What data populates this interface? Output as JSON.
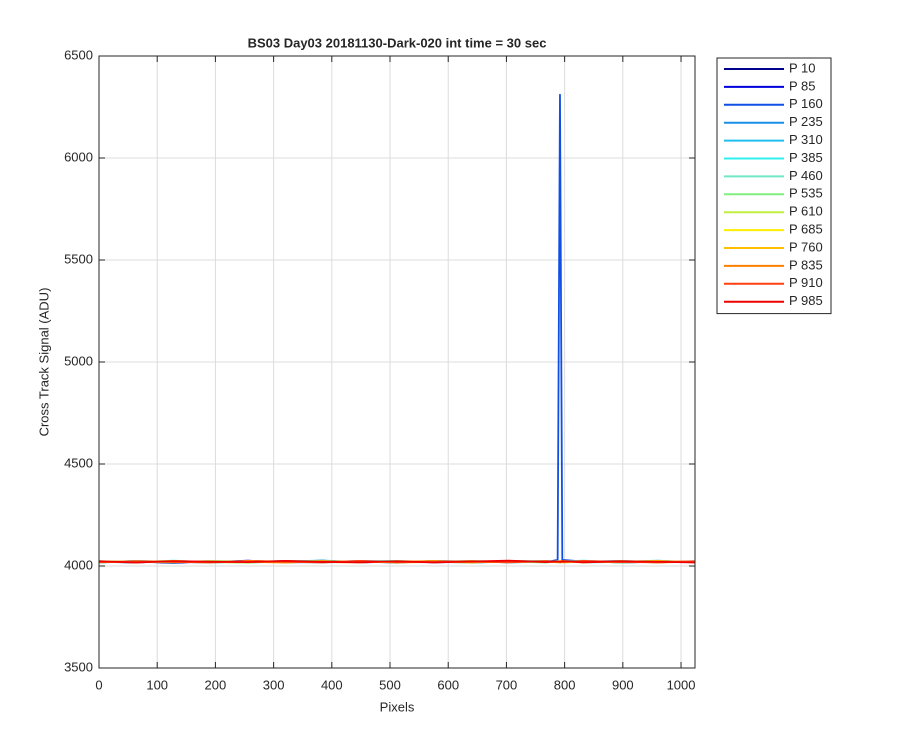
{
  "chart_data": {
    "type": "line",
    "title": "BS03 Day03 20181130-Dark-020 int time = 30 sec",
    "xlabel": "Pixels",
    "ylabel": "Cross Track Signal (ADU)",
    "x": [
      0,
      64,
      128,
      192,
      256,
      320,
      384,
      448,
      512,
      576,
      640,
      704,
      768,
      788,
      792,
      796,
      832,
      896,
      960,
      1024
    ],
    "xlim": [
      0,
      1024
    ],
    "ylim": [
      3500,
      6500
    ],
    "xticks": [
      0,
      100,
      200,
      300,
      400,
      500,
      600,
      700,
      800,
      900,
      1000
    ],
    "yticks": [
      3500,
      4000,
      4500,
      5000,
      5500,
      6000,
      6500
    ],
    "grid": true,
    "legend": "outside-right",
    "series": [
      {
        "name": "P 10",
        "color": "#00008f",
        "values": [
          4018,
          4022,
          4015,
          4024,
          4019,
          4021,
          4026,
          4017,
          4023,
          4020,
          4018,
          4025,
          4021,
          4019,
          4022,
          4020,
          4024,
          4017,
          4021,
          4019
        ]
      },
      {
        "name": "P 85",
        "color": "#0000df",
        "values": [
          4021,
          4017,
          4024,
          4019,
          4026,
          4018,
          4020,
          4023,
          4016,
          4025,
          4021,
          4019,
          4024,
          4022,
          4018,
          4021,
          4019,
          4023,
          4018,
          4022
        ]
      },
      {
        "name": "P 160",
        "color": "#0f4fe6",
        "values": [
          4020,
          4024,
          4018,
          4021,
          4017,
          4025,
          4019,
          4022,
          4024,
          4018,
          4023,
          4020,
          4019,
          4030,
          6310,
          4030,
          4022,
          4019,
          4024,
          4020
        ]
      },
      {
        "name": "P 235",
        "color": "#1a8fe8",
        "values": [
          4023,
          4019,
          4021,
          4016,
          4024,
          4020,
          4018,
          4025,
          4021,
          4019,
          4024,
          4017,
          4022,
          4020,
          4023,
          4018,
          4021,
          4025,
          4019,
          4021
        ]
      },
      {
        "name": "P 310",
        "color": "#20bfef",
        "values": [
          4017,
          4025,
          4020,
          4023,
          4018,
          4022,
          4027,
          4019,
          4020,
          4024,
          4016,
          4022,
          4025,
          4019,
          4021,
          4024,
          4018,
          4020,
          4026,
          4018
        ]
      },
      {
        "name": "P 385",
        "color": "#30efef",
        "values": [
          4022,
          4019,
          4026,
          4018,
          4021,
          4024,
          4017,
          4022,
          4025,
          4018,
          4021,
          4023,
          4018,
          4024,
          4019,
          4022,
          4026,
          4018,
          4021,
          4023
        ]
      },
      {
        "name": "P 460",
        "color": "#70e8c8",
        "values": [
          4019,
          4023,
          4017,
          4025,
          4022,
          4018,
          4021,
          4024,
          4019,
          4022,
          4025,
          4018,
          4020,
          4023,
          4017,
          4025,
          4020,
          4022,
          4018,
          4024
        ]
      },
      {
        "name": "P 535",
        "color": "#80ef80",
        "values": [
          4024,
          4018,
          4022,
          4020,
          4016,
          4023,
          4025,
          4018,
          4022,
          4019,
          4024,
          4021,
          4017,
          4022,
          4024,
          4019,
          4023,
          4017,
          4022,
          4020
        ]
      },
      {
        "name": "P 610",
        "color": "#c0ef40",
        "values": [
          4020,
          4022,
          4019,
          4024,
          4021,
          4017,
          4023,
          4021,
          4018,
          4025,
          4019,
          4022,
          4024,
          4018,
          4021,
          4023,
          4017,
          4024,
          4020,
          4022
        ]
      },
      {
        "name": "P 685",
        "color": "#ffef00",
        "values": [
          4018,
          4024,
          4021,
          4017,
          4025,
          4022,
          4019,
          4018,
          4024,
          4021,
          4017,
          4025,
          4020,
          4023,
          4019,
          4017,
          4022,
          4021,
          4025,
          4018
        ]
      },
      {
        "name": "P 760",
        "color": "#ffbf00",
        "values": [
          4022,
          4020,
          4025,
          4019,
          4018,
          4024,
          4021,
          4023,
          4017,
          4020,
          4024,
          4019,
          4022,
          4018,
          4025,
          4021,
          4019,
          4024,
          4017,
          4021
        ]
      },
      {
        "name": "P 835",
        "color": "#ff8000",
        "values": [
          4021,
          4018,
          4023,
          4022,
          4020,
          4017,
          4024,
          4019,
          4022,
          4024,
          4018,
          4021,
          4023,
          4020,
          4018,
          4024,
          4021,
          4019,
          4023,
          4020
        ]
      },
      {
        "name": "P 910",
        "color": "#ff4010",
        "values": [
          4019,
          4023,
          4020,
          4018,
          4024,
          4021,
          4017,
          4025,
          4019,
          4021,
          4023,
          4018,
          4024,
          4021,
          4022,
          4019,
          4025,
          4020,
          4018,
          4023
        ]
      },
      {
        "name": "P 985",
        "color": "#ef0000",
        "values": [
          4023,
          4017,
          4024,
          4021,
          4019,
          4025,
          4020,
          4018,
          4023,
          4017,
          4022,
          4026,
          4019,
          4022,
          4020,
          4024,
          4018,
          4023,
          4021,
          4017
        ]
      }
    ]
  }
}
